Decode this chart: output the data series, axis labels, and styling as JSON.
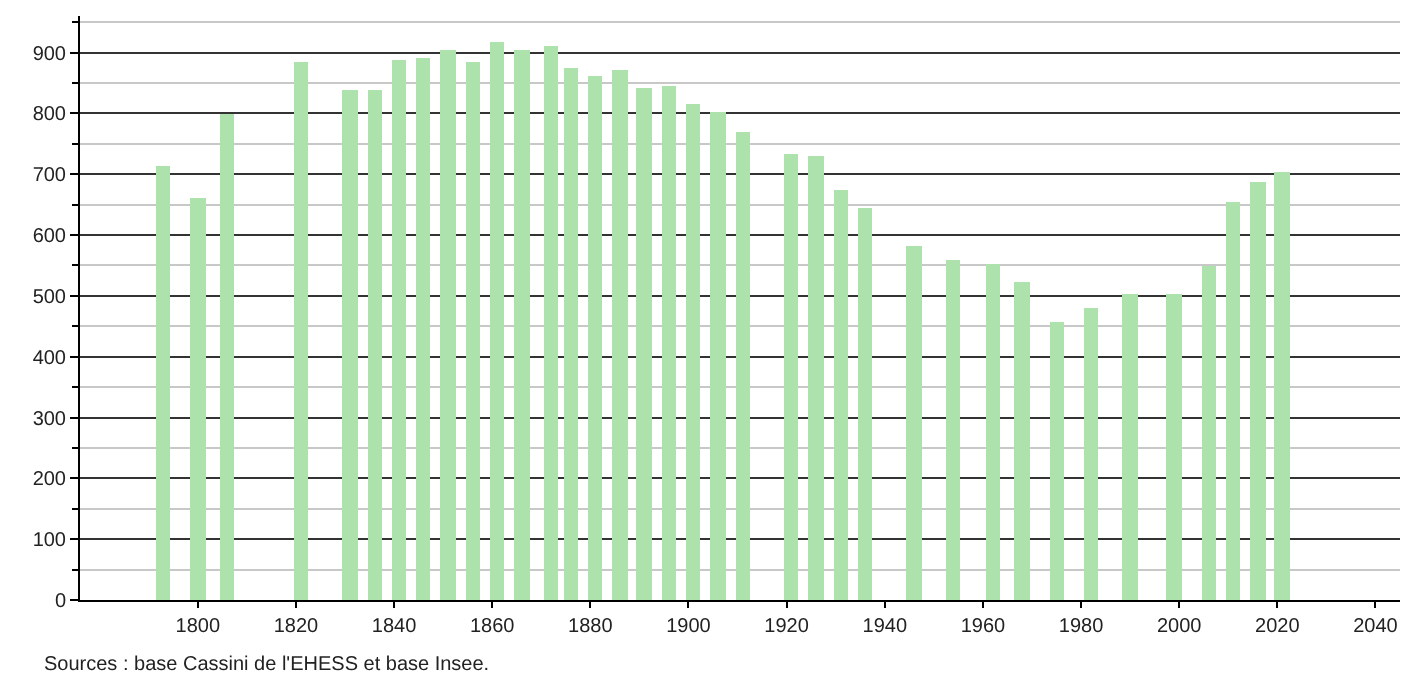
{
  "chart_data": {
    "type": "bar",
    "x": [
      1793,
      1800,
      1806,
      1821,
      1831,
      1836,
      1841,
      1846,
      1851,
      1856,
      1861,
      1866,
      1872,
      1876,
      1881,
      1886,
      1891,
      1896,
      1901,
      1906,
      1911,
      1921,
      1926,
      1931,
      1936,
      1946,
      1954,
      1962,
      1968,
      1975,
      1982,
      1990,
      1999,
      2006,
      2011,
      2016,
      2021
    ],
    "values": [
      715,
      660,
      800,
      885,
      838,
      838,
      887,
      890,
      903,
      884,
      917,
      903,
      910,
      874,
      861,
      870,
      841,
      844,
      815,
      801,
      769,
      733,
      729,
      673,
      644,
      581,
      558,
      552,
      522,
      457,
      480,
      503,
      503,
      549,
      654,
      687,
      703
    ],
    "color": "#ade2ad",
    "xlim": [
      1776,
      2045
    ],
    "xticks": [
      1800,
      1820,
      1840,
      1860,
      1880,
      1900,
      1920,
      1940,
      1960,
      1980,
      2000,
      2020,
      2040
    ],
    "ylim": [
      0,
      960
    ],
    "yticks": [
      0,
      100,
      200,
      300,
      400,
      500,
      600,
      700,
      800,
      900
    ],
    "grid": "y",
    "annotations": [
      "Sources : base Cassini de l'EHESS et base Insee."
    ]
  }
}
